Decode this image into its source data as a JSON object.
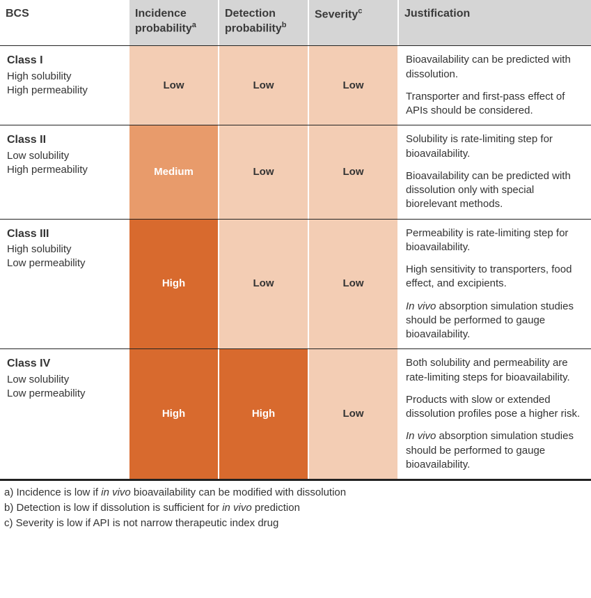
{
  "colors": {
    "header_bg": "#d5d5d5",
    "low_bg": "#f3cdb4",
    "low_text": "#333333",
    "medium_bg": "#e89b6b",
    "medium_text": "#ffffff",
    "high_bg": "#d86a2e",
    "high_text": "#ffffff",
    "border": "#222222",
    "cell_divider": "#ffffff"
  },
  "columns": {
    "bcs": "BCS",
    "incidence_html": "Incidence probability<sup>a</sup>",
    "detection_html": "Detection probability<sup>b</sup>",
    "severity_html": "Severity<sup>c</sup>",
    "justification": "Justification"
  },
  "levels": {
    "low": "Low",
    "medium": "Medium",
    "high": "High"
  },
  "rows": [
    {
      "bcs_title": "Class I",
      "bcs_sub1": "High solubility",
      "bcs_sub2": "High permeability",
      "incidence": "low",
      "detection": "low",
      "severity": "low",
      "justification_html": "<p>Bioavailability can be predicted with dissolution.</p><p>Transporter and first-pass effect of APIs should be considered.</p>"
    },
    {
      "bcs_title": "Class II",
      "bcs_sub1": "Low solubility",
      "bcs_sub2": "High permeability",
      "incidence": "medium",
      "detection": "low",
      "severity": "low",
      "justification_html": "<p>Solubility is rate-limiting step for bioavailability.</p><p>Bioavailability can be predicted with dissolution only with special biorelevant methods.</p>"
    },
    {
      "bcs_title": "Class III",
      "bcs_sub1": "High solubility",
      "bcs_sub2": "Low permeability",
      "incidence": "high",
      "detection": "low",
      "severity": "low",
      "justification_html": "<p>Permeability is rate-limiting step for bioavailability.</p><p>High sensitivity to transporters, food effect, and excipients.</p><p><em>In vivo</em> absorption simulation studies should be performed to gauge bioavailability.</p>"
    },
    {
      "bcs_title": "Class IV",
      "bcs_sub1": "Low solubility",
      "bcs_sub2": "Low permeability",
      "incidence": "high",
      "detection": "high",
      "severity": "low",
      "justification_html": "<p>Both solubility and permeability are rate-limiting steps for bioavailability.</p><p>Products with slow or extended dissolution profiles pose a higher risk.</p><p><em>In vivo</em> absorption simulation studies should be performed to gauge bioavailability.</p>"
    }
  ],
  "footnotes": {
    "a_html": "a) Incidence is low if <em>in vivo</em> bioavailability can be modified with dissolution",
    "b_html": "b) Detection is low if dissolution is sufficient for <em>in vivo</em> prediction",
    "c_html": "c) Severity is low if API is not narrow therapeutic index drug"
  }
}
